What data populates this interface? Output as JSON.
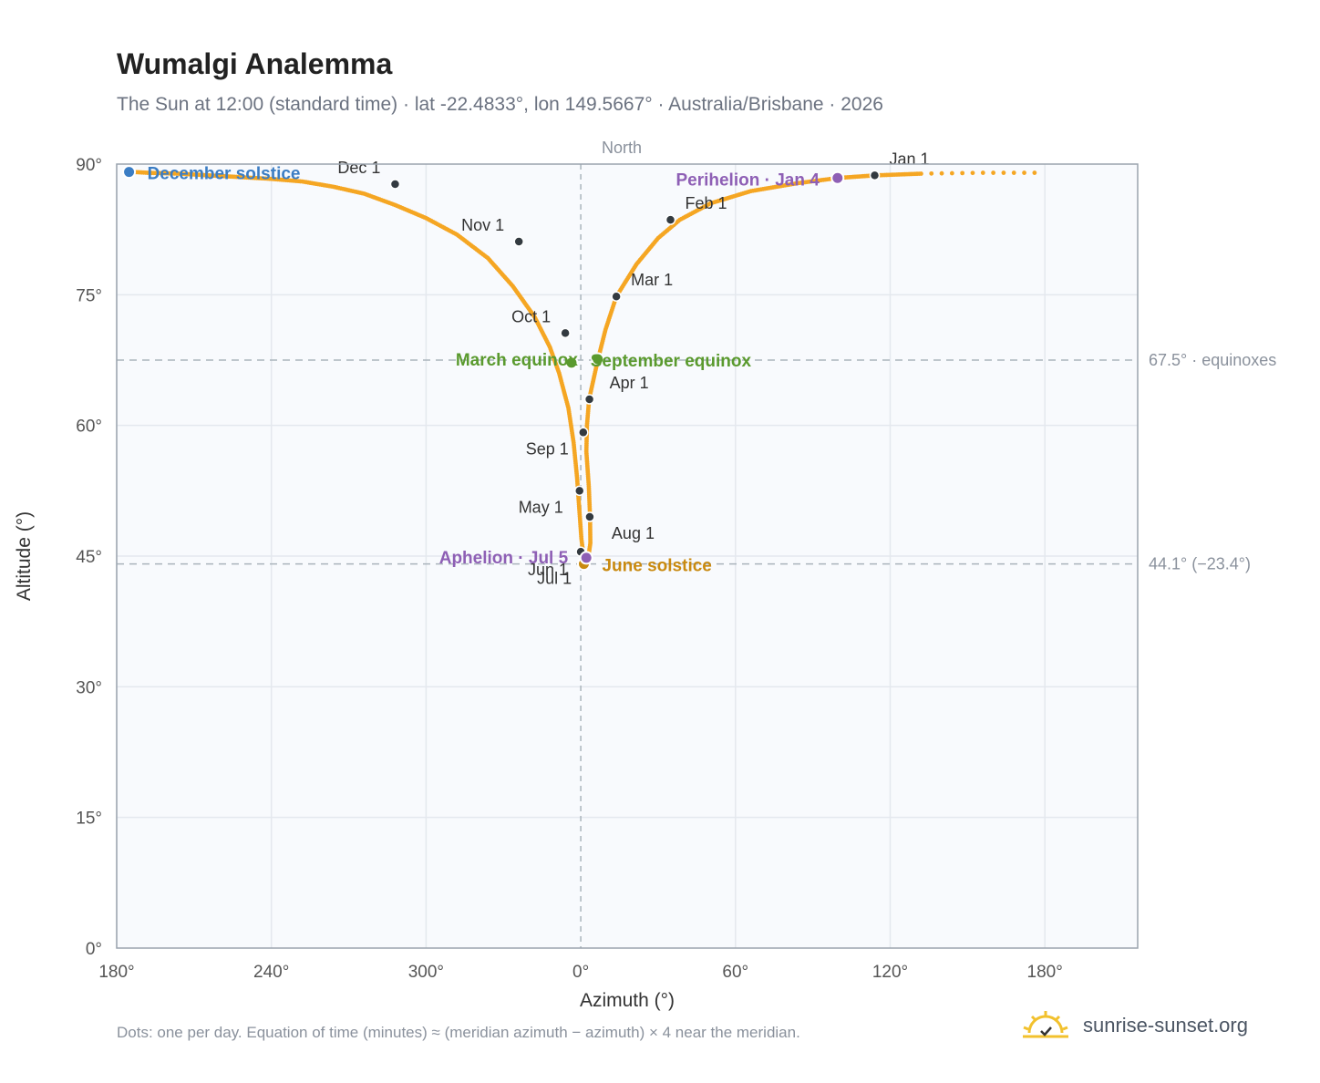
{
  "header": {
    "title": "Wumalgi Analemma",
    "subtitle": "The Sun at 12:00 (standard time) · lat -22.4833°, lon 149.5667° · Australia/Brisbane · 2026"
  },
  "footer": {
    "note": "Dots: one per day. Equation of time (minutes) ≈ (meridian azimuth − azimuth) × 4 near the meridian.",
    "brand": "sunrise-sunset.org"
  },
  "colors": {
    "path": "#f5a623",
    "month_dot": "#333a40",
    "december_solstice": "#3b7dc4",
    "equinox": "#5a9a2e",
    "june_solstice": "#c98a10",
    "apsis": "#8e5fb5",
    "plot_bg": "#f8fafd",
    "grid": "#e4e8ee",
    "frame": "#9aa3ad",
    "reference": "#aab4bc"
  },
  "chart_data": {
    "type": "scatter",
    "title": "Wumalgi Analemma",
    "xlabel": "Azimuth (°)",
    "ylabel": "Altitude (°)",
    "x_unit": "azimuth offset from north, degrees (tick labels shown as compass azimuth)",
    "xlim": [
      -150,
      180
    ],
    "ylim": [
      0,
      90
    ],
    "x_ticks": [
      {
        "value": -150,
        "label": "180°"
      },
      {
        "value": -100,
        "label": "240°"
      },
      {
        "value": -50,
        "label": "300°"
      },
      {
        "value": 0,
        "label": "0°"
      },
      {
        "value": 50,
        "label": "60°"
      },
      {
        "value": 100,
        "label": "120°"
      },
      {
        "value": 150,
        "label": "180°"
      }
    ],
    "y_ticks": [
      {
        "value": 0,
        "label": "0°"
      },
      {
        "value": 15,
        "label": "15°"
      },
      {
        "value": 30,
        "label": "30°"
      },
      {
        "value": 45,
        "label": "45°"
      },
      {
        "value": 60,
        "label": "60°"
      },
      {
        "value": 75,
        "label": "75°"
      },
      {
        "value": 90,
        "label": "90°"
      }
    ],
    "grid": true,
    "north_label": "North",
    "reference_lines": [
      {
        "y": 67.5,
        "label": "67.5° · equinoxes"
      },
      {
        "y": 44.1,
        "label": "44.1° (−23.4°)"
      }
    ],
    "path_points": [
      [
        -145,
        89.1
      ],
      [
        -140,
        89.0
      ],
      [
        -130,
        88.9
      ],
      [
        -120,
        88.7
      ],
      [
        -110,
        88.5
      ],
      [
        -100,
        88.3
      ],
      [
        -90,
        88.0
      ],
      [
        -80,
        87.4
      ],
      [
        -70,
        86.6
      ],
      [
        -60,
        85.3
      ],
      [
        -50,
        83.8
      ],
      [
        -40,
        81.9
      ],
      [
        -30,
        79.2
      ],
      [
        -22,
        76.0
      ],
      [
        -15,
        72.5
      ],
      [
        -10,
        69.0
      ],
      [
        -7,
        66.0
      ],
      [
        -4,
        62.0
      ],
      [
        -2.3,
        58.0
      ],
      [
        -1.2,
        54.0
      ],
      [
        -0.4,
        50.0
      ],
      [
        0.2,
        47.0
      ],
      [
        0.8,
        45.3
      ],
      [
        1.1,
        44.8
      ],
      [
        1.8,
        44.5
      ],
      [
        2.5,
        45.0
      ],
      [
        3.1,
        46.5
      ],
      [
        3.0,
        49.5
      ],
      [
        2.6,
        53.0
      ],
      [
        1.8,
        57.0
      ],
      [
        2.0,
        60.0
      ],
      [
        2.7,
        63.0
      ],
      [
        5.5,
        67.5
      ],
      [
        8.0,
        71.0
      ],
      [
        11.5,
        74.8
      ],
      [
        18.0,
        78.5
      ],
      [
        25.0,
        81.5
      ],
      [
        32.0,
        83.6
      ],
      [
        42.0,
        85.5
      ],
      [
        55.0,
        86.9
      ],
      [
        70.0,
        87.8
      ],
      [
        83.0,
        88.4
      ],
      [
        95.0,
        88.7
      ],
      [
        110.0,
        88.9
      ],
      [
        130.0,
        89.0
      ],
      [
        150.0,
        89.0
      ]
    ],
    "month_markers": [
      {
        "label": "Jan 1",
        "x": 95.0,
        "y": 88.7
      },
      {
        "label": "Feb 1",
        "x": 29.0,
        "y": 83.6
      },
      {
        "label": "Mar 1",
        "x": 11.5,
        "y": 74.8
      },
      {
        "label": "Apr 1",
        "x": 2.8,
        "y": 63.0
      },
      {
        "label": "May 1",
        "x": -0.4,
        "y": 52.5
      },
      {
        "label": "Jun 1",
        "x": 0.0,
        "y": 45.5
      },
      {
        "label": "Jul 1",
        "x": 1.2,
        "y": 44.1
      },
      {
        "label": "Aug 1",
        "x": 2.9,
        "y": 49.5
      },
      {
        "label": "Sep 1",
        "x": 0.8,
        "y": 59.2
      },
      {
        "label": "Oct 1",
        "x": -5.0,
        "y": 70.6
      },
      {
        "label": "Nov 1",
        "x": -20.0,
        "y": 81.1
      },
      {
        "label": "Dec 1",
        "x": -60.0,
        "y": 87.7
      }
    ],
    "events": [
      {
        "label": "December solstice",
        "x": -146.0,
        "y": 89.1,
        "color_key": "december_solstice"
      },
      {
        "label": "March equinox",
        "x": -3.0,
        "y": 67.2,
        "color_key": "equinox"
      },
      {
        "label": "September equinox",
        "x": 5.5,
        "y": 67.6,
        "color_key": "equinox"
      },
      {
        "label": "June solstice",
        "x": 1.0,
        "y": 44.1,
        "color_key": "june_solstice"
      },
      {
        "label": "Aphelion · Jul 5",
        "x": 1.8,
        "y": 44.8,
        "color_key": "apsis"
      },
      {
        "label": "Perihelion · Jan 4",
        "x": 83.0,
        "y": 88.4,
        "color_key": "apsis"
      }
    ]
  }
}
